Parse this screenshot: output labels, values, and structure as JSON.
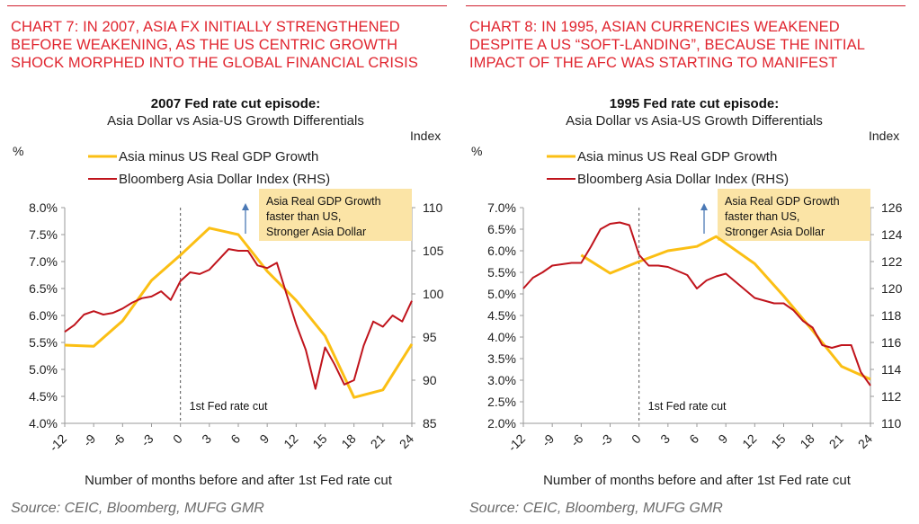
{
  "charts": [
    {
      "headline": "CHART 7: IN 2007, ASIA FX INITIALLY STRENGTHENED BEFORE WEAKENING, AS THE US CENTRIC GROWTH SHOCK MORPHED INTO THE GLOBAL FINANCIAL CRISIS",
      "source": "Source: CEIC, Bloomberg, MUFG GMR"
    },
    {
      "headline": "CHART 8: IN 1995, ASIAN CURRENCIES WEAKENED DESPITE A US “SOFT-LANDING”, BECAUSE THE INITIAL IMPACT OF THE AFC WAS STARTING TO MANIFEST",
      "source": "Source: CEIC, Bloomberg, MUFG GMR"
    }
  ],
  "colors": {
    "headline": "#e0252f",
    "gdp_line": "#fbbf14",
    "index_line": "#c0141c",
    "annotation_bg": "#fbe4a6",
    "arrow": "#4a78b5"
  },
  "chart_data": [
    {
      "type": "line",
      "title": "2007 Fed rate cut episode:",
      "subtitle": "Asia Dollar vs Asia-US Growth Differentials",
      "xlabel": "Number of months before and after 1st Fed rate cut",
      "ylabel_left": "%",
      "ylabel_right": "Index",
      "xlim": [
        -12,
        24
      ],
      "x_ticks": [
        "-12",
        "-9",
        "-6",
        "-3",
        "0",
        "3",
        "6",
        "9",
        "12",
        "15",
        "18",
        "21",
        "24"
      ],
      "ylim_left": [
        4.0,
        8.0
      ],
      "y_ticks_left": [
        "4.0%",
        "4.5%",
        "5.0%",
        "5.5%",
        "6.0%",
        "6.5%",
        "7.0%",
        "7.5%",
        "8.0%"
      ],
      "ylim_right": [
        85,
        110
      ],
      "y_ticks_right": [
        "85",
        "90",
        "95",
        "100",
        "105",
        "110"
      ],
      "event_x": 0,
      "event_label": "1st Fed rate cut",
      "annotation": "Asia Real GDP Growth faster than US, Stronger Asia Dollar",
      "series": [
        {
          "name": "Asia minus US Real GDP Growth",
          "axis": "left",
          "x": [
            -12,
            -9,
            -6,
            -3,
            0,
            3,
            6,
            9,
            12,
            15,
            18,
            21,
            24
          ],
          "values": [
            5.45,
            5.43,
            5.9,
            6.65,
            7.12,
            7.62,
            7.5,
            6.82,
            6.28,
            5.62,
            4.48,
            4.62,
            5.47
          ]
        },
        {
          "name": "Bloomberg Asia Dollar Index (RHS)",
          "axis": "right",
          "x": [
            -12,
            -11,
            -10,
            -9,
            -8,
            -7,
            -6,
            -5,
            -4,
            -3,
            -2,
            -1,
            0,
            1,
            2,
            3,
            4,
            5,
            6,
            7,
            8,
            9,
            10,
            11,
            12,
            13,
            14,
            15,
            16,
            17,
            18,
            19,
            20,
            21,
            22,
            23,
            24
          ],
          "values": [
            95.6,
            96.4,
            97.6,
            98.0,
            97.6,
            97.8,
            98.3,
            99.0,
            99.5,
            99.7,
            100.3,
            99.3,
            101.5,
            102.5,
            102.3,
            102.8,
            104.0,
            105.2,
            105.0,
            105.0,
            103.3,
            103.0,
            103.6,
            100.0,
            96.5,
            93.5,
            89.0,
            93.8,
            91.8,
            89.5,
            90.0,
            94.0,
            96.8,
            96.2,
            97.5,
            96.8,
            99.2
          ]
        }
      ]
    },
    {
      "type": "line",
      "title": "1995 Fed rate cut episode:",
      "subtitle": "Asia Dollar vs Asia-US Growth Differentials",
      "xlabel": "Number of months before and after 1st Fed rate cut",
      "ylabel_left": "%",
      "ylabel_right": "Index",
      "xlim": [
        -12,
        24
      ],
      "x_ticks": [
        "-12",
        "-9",
        "-6",
        "-3",
        "0",
        "3",
        "6",
        "9",
        "12",
        "15",
        "18",
        "21",
        "24"
      ],
      "ylim_left": [
        2.0,
        7.0
      ],
      "y_ticks_left": [
        "2.0%",
        "2.5%",
        "3.0%",
        "3.5%",
        "4.0%",
        "4.5%",
        "5.0%",
        "5.5%",
        "6.0%",
        "6.5%",
        "7.0%"
      ],
      "ylim_right": [
        110,
        126
      ],
      "y_ticks_right": [
        "110",
        "112",
        "114",
        "116",
        "118",
        "120",
        "122",
        "124",
        "126"
      ],
      "event_x": 0,
      "event_label": "1st Fed rate cut",
      "annotation": "Asia Real GDP Growth faster than US, Stronger Asia Dollar",
      "series": [
        {
          "name": "Asia minus US Real GDP Growth",
          "axis": "left",
          "x": [
            -6,
            -3,
            0,
            3,
            6,
            8,
            12,
            15,
            18,
            21,
            24
          ],
          "values": [
            5.9,
            5.48,
            5.75,
            6.0,
            6.1,
            6.33,
            5.7,
            4.95,
            4.15,
            3.32,
            3.02
          ]
        },
        {
          "name": "Bloomberg Asia Dollar Index (RHS)",
          "axis": "right",
          "x": [
            -12,
            -11,
            -10,
            -9,
            -8,
            -7,
            -6,
            -5,
            -4,
            -3,
            -2,
            -1,
            0,
            1,
            2,
            3,
            4,
            5,
            6,
            7,
            8,
            9,
            10,
            11,
            12,
            13,
            14,
            15,
            16,
            17,
            18,
            19,
            20,
            21,
            22,
            23,
            24
          ],
          "values": [
            120.0,
            120.8,
            121.2,
            121.7,
            121.8,
            121.9,
            121.9,
            123.1,
            124.4,
            124.8,
            124.9,
            124.7,
            122.5,
            121.7,
            121.7,
            121.6,
            121.3,
            121.0,
            120.0,
            120.6,
            120.9,
            121.1,
            120.5,
            119.9,
            119.3,
            119.1,
            118.9,
            118.9,
            118.4,
            117.6,
            117.1,
            115.8,
            115.6,
            115.8,
            115.8,
            113.8,
            112.8
          ]
        }
      ]
    }
  ]
}
